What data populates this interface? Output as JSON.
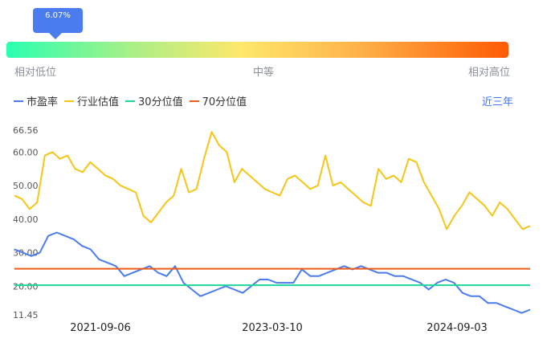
{
  "tooltip": {
    "text": "6.07%"
  },
  "scale": {
    "low": "相对低位",
    "mid": "中等",
    "high": "相对高位"
  },
  "legend": {
    "items": [
      {
        "label": "市盈率",
        "color": "#4a7cf0"
      },
      {
        "label": "行业估值",
        "color": "#f5c518"
      },
      {
        "label": "30分位值",
        "color": "#1ed69a"
      },
      {
        "label": "70分位值",
        "color": "#ee5a18"
      }
    ]
  },
  "period": {
    "label": "近三年"
  },
  "chart_data": {
    "type": "line",
    "y_ticks": [
      "66.56",
      "60.00",
      "50.00",
      "40.00",
      "30.00",
      "20.00",
      "11.45"
    ],
    "ylim": [
      11.45,
      66.56
    ],
    "x_ticks": [
      "2021-09-06",
      "2023-03-10",
      "2024-09-03"
    ],
    "series": [
      {
        "name": "行业估值",
        "color": "#f5c518",
        "values": [
          47,
          46,
          43,
          45,
          59,
          60,
          58,
          59,
          55,
          54,
          57,
          55,
          53,
          52,
          50,
          49,
          48,
          41,
          39,
          42,
          45,
          47,
          55,
          48,
          49,
          58,
          66,
          62,
          60,
          51,
          55,
          53,
          51,
          49,
          48,
          47,
          52,
          53,
          51,
          49,
          50,
          59,
          50,
          51,
          49,
          47,
          45,
          44,
          55,
          52,
          53,
          51,
          58,
          57,
          51,
          47,
          43,
          37,
          41,
          44,
          48,
          46,
          44,
          41,
          45,
          43,
          40,
          37,
          38
        ]
      },
      {
        "name": "市盈率",
        "color": "#4a7cf0",
        "values": [
          31,
          30,
          29,
          30,
          35,
          36,
          35,
          34,
          32,
          31,
          28,
          27,
          26,
          23,
          24,
          25,
          26,
          24,
          23,
          26,
          21,
          19,
          17,
          18,
          19,
          20,
          19,
          18,
          20,
          22,
          22,
          21,
          21,
          21,
          25,
          23,
          23,
          24,
          25,
          26,
          25,
          26,
          25,
          24,
          24,
          23,
          23,
          22,
          21,
          19,
          21,
          22,
          21,
          18,
          17,
          17,
          15,
          15,
          14,
          13,
          12,
          13
        ]
      },
      {
        "name": "30分位值",
        "color": "#1ed69a",
        "values": [
          20.3
        ]
      },
      {
        "name": "70分位值",
        "color": "#ee5a18",
        "values": [
          25.2
        ]
      }
    ]
  }
}
